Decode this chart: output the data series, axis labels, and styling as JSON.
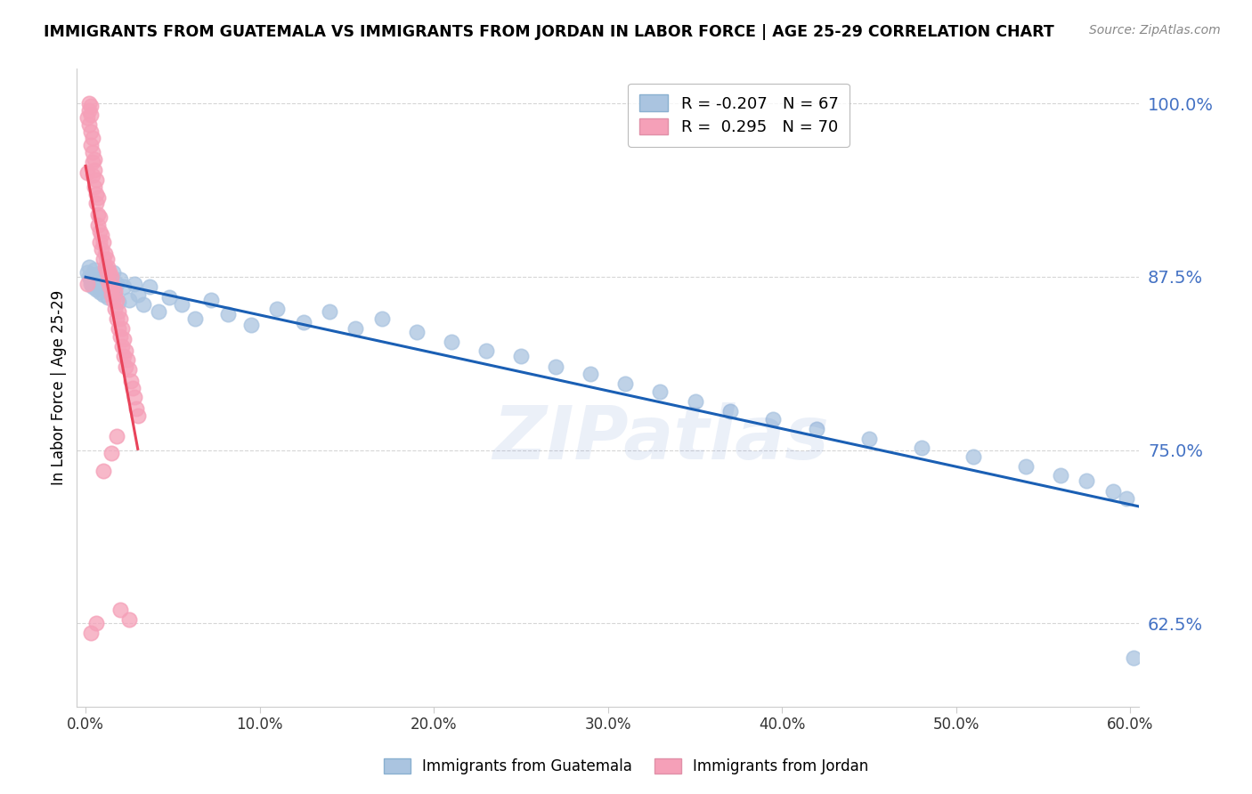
{
  "title": "IMMIGRANTS FROM GUATEMALA VS IMMIGRANTS FROM JORDAN IN LABOR FORCE | AGE 25-29 CORRELATION CHART",
  "source": "Source: ZipAtlas.com",
  "ylabel": "In Labor Force | Age 25-29",
  "xlim": [
    -0.005,
    0.605
  ],
  "ylim": [
    0.565,
    1.025
  ],
  "yticks": [
    0.625,
    0.75,
    0.875,
    1.0
  ],
  "ytick_labels": [
    "62.5%",
    "75.0%",
    "87.5%",
    "100.0%"
  ],
  "xticks": [
    0.0,
    0.1,
    0.2,
    0.3,
    0.4,
    0.5,
    0.6
  ],
  "xtick_labels": [
    "0.0%",
    "10.0%",
    "20.0%",
    "30.0%",
    "40.0%",
    "50.0%",
    "60.0%"
  ],
  "guatemala_color": "#aac4e0",
  "jordan_color": "#f5a0b8",
  "trendline_guatemala_color": "#1a5fb4",
  "trendline_jordan_color": "#e8435a",
  "R_guatemala": -0.207,
  "N_guatemala": 67,
  "R_jordan": 0.295,
  "N_jordan": 70,
  "watermark": "ZIPatlas",
  "guatemala_x": [
    0.001,
    0.002,
    0.002,
    0.003,
    0.003,
    0.004,
    0.004,
    0.005,
    0.005,
    0.006,
    0.006,
    0.007,
    0.007,
    0.008,
    0.008,
    0.009,
    0.01,
    0.01,
    0.011,
    0.012,
    0.013,
    0.014,
    0.015,
    0.016,
    0.017,
    0.018,
    0.019,
    0.02,
    0.022,
    0.025,
    0.028,
    0.03,
    0.033,
    0.037,
    0.042,
    0.048,
    0.055,
    0.063,
    0.072,
    0.082,
    0.095,
    0.11,
    0.125,
    0.14,
    0.155,
    0.17,
    0.19,
    0.21,
    0.23,
    0.25,
    0.27,
    0.29,
    0.31,
    0.33,
    0.35,
    0.37,
    0.395,
    0.42,
    0.45,
    0.48,
    0.51,
    0.54,
    0.56,
    0.575,
    0.59,
    0.598,
    0.602
  ],
  "guatemala_y": [
    0.878,
    0.875,
    0.882,
    0.87,
    0.873,
    0.868,
    0.876,
    0.871,
    0.88,
    0.866,
    0.874,
    0.869,
    0.877,
    0.864,
    0.872,
    0.867,
    0.879,
    0.862,
    0.875,
    0.87,
    0.86,
    0.875,
    0.865,
    0.878,
    0.862,
    0.87,
    0.857,
    0.873,
    0.868,
    0.858,
    0.87,
    0.862,
    0.855,
    0.868,
    0.85,
    0.86,
    0.855,
    0.845,
    0.858,
    0.848,
    0.84,
    0.852,
    0.842,
    0.85,
    0.838,
    0.845,
    0.835,
    0.828,
    0.822,
    0.818,
    0.81,
    0.805,
    0.798,
    0.792,
    0.785,
    0.778,
    0.772,
    0.765,
    0.758,
    0.752,
    0.745,
    0.738,
    0.732,
    0.728,
    0.72,
    0.715,
    0.6
  ],
  "jordan_x": [
    0.001,
    0.001,
    0.001,
    0.002,
    0.002,
    0.002,
    0.003,
    0.003,
    0.003,
    0.003,
    0.004,
    0.004,
    0.004,
    0.004,
    0.005,
    0.005,
    0.005,
    0.006,
    0.006,
    0.006,
    0.007,
    0.007,
    0.007,
    0.008,
    0.008,
    0.008,
    0.009,
    0.009,
    0.01,
    0.01,
    0.011,
    0.011,
    0.012,
    0.012,
    0.013,
    0.013,
    0.014,
    0.014,
    0.015,
    0.015,
    0.016,
    0.016,
    0.017,
    0.017,
    0.018,
    0.018,
    0.019,
    0.019,
    0.02,
    0.02,
    0.021,
    0.021,
    0.022,
    0.022,
    0.023,
    0.023,
    0.024,
    0.025,
    0.026,
    0.027,
    0.028,
    0.029,
    0.03,
    0.018,
    0.015,
    0.01,
    0.006,
    0.003,
    0.025,
    0.02
  ],
  "jordan_y": [
    0.87,
    0.99,
    0.95,
    1.0,
    0.995,
    0.985,
    0.998,
    0.992,
    0.98,
    0.97,
    0.975,
    0.965,
    0.958,
    0.948,
    0.96,
    0.952,
    0.94,
    0.935,
    0.945,
    0.928,
    0.932,
    0.92,
    0.912,
    0.918,
    0.908,
    0.9,
    0.905,
    0.895,
    0.9,
    0.888,
    0.892,
    0.882,
    0.888,
    0.878,
    0.882,
    0.872,
    0.878,
    0.868,
    0.875,
    0.862,
    0.868,
    0.858,
    0.865,
    0.852,
    0.858,
    0.845,
    0.85,
    0.838,
    0.845,
    0.832,
    0.838,
    0.825,
    0.83,
    0.818,
    0.822,
    0.81,
    0.815,
    0.808,
    0.8,
    0.795,
    0.788,
    0.78,
    0.775,
    0.76,
    0.748,
    0.735,
    0.625,
    0.618,
    0.628,
    0.635
  ],
  "jordan_trend_x": [
    0.0,
    0.03
  ],
  "guatemala_trend_x": [
    0.0,
    0.605
  ]
}
